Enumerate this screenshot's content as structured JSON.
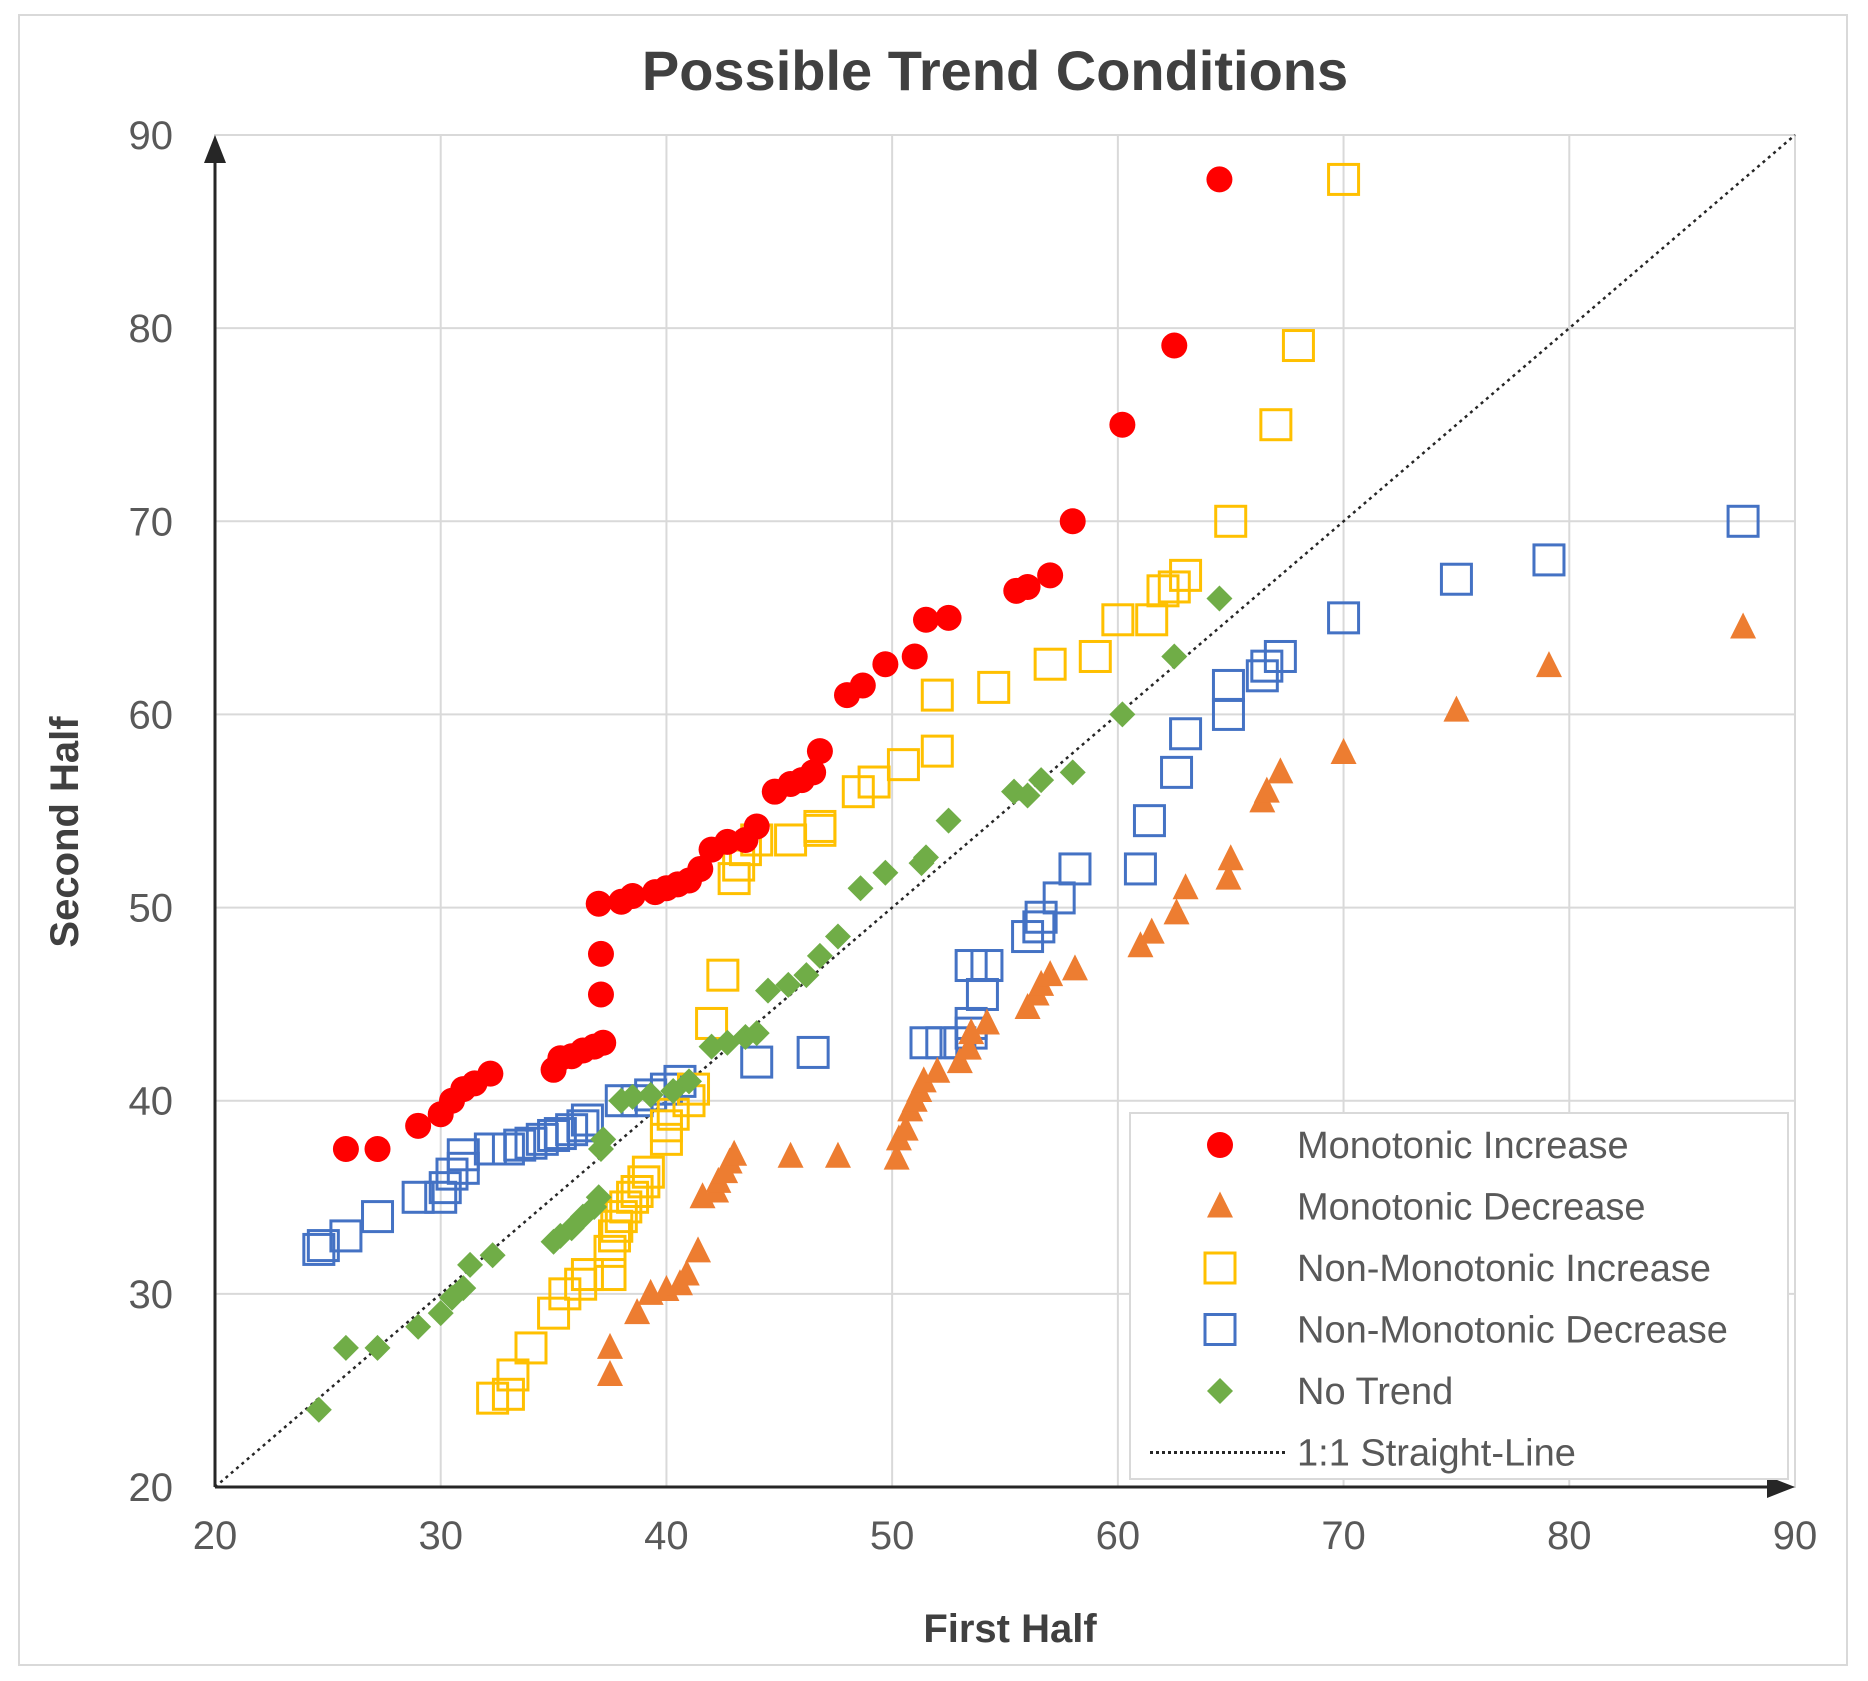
{
  "chart_data": {
    "type": "scatter",
    "title": "Possible Trend Conditions",
    "xlabel": "First Half",
    "ylabel": "Second Half",
    "xlim": [
      20,
      90
    ],
    "ylim": [
      20,
      90
    ],
    "xticks": [
      20,
      30,
      40,
      50,
      60,
      70,
      80,
      90
    ],
    "yticks": [
      20,
      30,
      40,
      50,
      60,
      70,
      80,
      90
    ],
    "grid": true,
    "legend_position": "bottom-right",
    "series": [
      {
        "name": "Monotonic Increase",
        "marker": "circle",
        "color": "#ff0000",
        "points": [
          [
            25.8,
            37.5
          ],
          [
            27.2,
            37.5
          ],
          [
            29,
            38.7
          ],
          [
            30,
            39.3
          ],
          [
            30.5,
            40
          ],
          [
            31,
            40.6
          ],
          [
            31.5,
            40.9
          ],
          [
            32.2,
            41.4
          ],
          [
            35,
            41.6
          ],
          [
            35.3,
            42.2
          ],
          [
            35.8,
            42.3
          ],
          [
            36.3,
            42.6
          ],
          [
            36.8,
            42.8
          ],
          [
            37.2,
            43
          ],
          [
            37.1,
            45.5
          ],
          [
            37.1,
            47.6
          ],
          [
            37,
            50.2
          ],
          [
            38,
            50.3
          ],
          [
            38.5,
            50.6
          ],
          [
            39.5,
            50.8
          ],
          [
            40,
            51
          ],
          [
            40.5,
            51.2
          ],
          [
            41,
            51.4
          ],
          [
            41.5,
            52
          ],
          [
            42,
            53
          ],
          [
            42.7,
            53.4
          ],
          [
            43.5,
            53.5
          ],
          [
            44,
            54.2
          ],
          [
            44.8,
            56
          ],
          [
            45.5,
            56.4
          ],
          [
            46,
            56.6
          ],
          [
            46.5,
            57
          ],
          [
            46.8,
            58.1
          ],
          [
            48,
            61
          ],
          [
            48.7,
            61.5
          ],
          [
            49.7,
            62.6
          ],
          [
            51,
            63
          ],
          [
            51.5,
            64.9
          ],
          [
            52.5,
            65
          ],
          [
            55.5,
            66.4
          ],
          [
            56,
            66.6
          ],
          [
            57,
            67.2
          ],
          [
            58,
            70
          ],
          [
            60.2,
            75
          ],
          [
            62.5,
            79.1
          ],
          [
            64.5,
            87.7
          ]
        ]
      },
      {
        "name": "Monotonic Decrease",
        "marker": "triangle",
        "color": "#ed7d31",
        "points": [
          [
            37.5,
            25.8
          ],
          [
            37.5,
            27.2
          ],
          [
            38.7,
            29
          ],
          [
            39.3,
            30
          ],
          [
            40,
            30.2
          ],
          [
            40.6,
            30.5
          ],
          [
            40.9,
            31
          ],
          [
            41.4,
            32.2
          ],
          [
            41.6,
            35
          ],
          [
            42.2,
            35.3
          ],
          [
            42.3,
            35.8
          ],
          [
            42.6,
            36.3
          ],
          [
            42.8,
            36.8
          ],
          [
            43,
            37.2
          ],
          [
            45.5,
            37.1
          ],
          [
            47.6,
            37.1
          ],
          [
            50.2,
            37
          ],
          [
            50.3,
            38
          ],
          [
            50.6,
            38.5
          ],
          [
            50.8,
            39.5
          ],
          [
            51,
            40
          ],
          [
            51.2,
            40.5
          ],
          [
            51.4,
            41
          ],
          [
            52,
            41.5
          ],
          [
            53,
            42
          ],
          [
            53.4,
            42.7
          ],
          [
            53.5,
            43.5
          ],
          [
            54.2,
            44
          ],
          [
            56,
            44.8
          ],
          [
            56.4,
            45.5
          ],
          [
            56.6,
            46
          ],
          [
            57,
            46.5
          ],
          [
            58.1,
            46.8
          ],
          [
            61,
            48
          ],
          [
            61.5,
            48.7
          ],
          [
            62.6,
            49.7
          ],
          [
            63,
            51
          ],
          [
            64.9,
            51.5
          ],
          [
            65,
            52.5
          ],
          [
            66.4,
            55.5
          ],
          [
            66.6,
            56
          ],
          [
            67.2,
            57
          ],
          [
            70,
            58
          ],
          [
            75,
            60.2
          ],
          [
            79.1,
            62.5
          ],
          [
            87.7,
            64.5
          ]
        ]
      },
      {
        "name": "Non-Monotonic Increase",
        "marker": "square-open",
        "color": "#ffc000",
        "points": [
          [
            32.3,
            24.6
          ],
          [
            33,
            24.8
          ],
          [
            33.2,
            25.8
          ],
          [
            34,
            27.2
          ],
          [
            35,
            29
          ],
          [
            35.5,
            30
          ],
          [
            36.2,
            30.5
          ],
          [
            36.5,
            31
          ],
          [
            37.5,
            31
          ],
          [
            37.5,
            32.2
          ],
          [
            37.7,
            33
          ],
          [
            37.8,
            33.5
          ],
          [
            38,
            34
          ],
          [
            38.2,
            34.5
          ],
          [
            38.5,
            35
          ],
          [
            38.7,
            35.3
          ],
          [
            39,
            35.8
          ],
          [
            39.2,
            36.3
          ],
          [
            40,
            38
          ],
          [
            40,
            38.7
          ],
          [
            40.3,
            39.3
          ],
          [
            41,
            40
          ],
          [
            41.2,
            40.6
          ],
          [
            42,
            44
          ],
          [
            42.5,
            46.5
          ],
          [
            43,
            51.5
          ],
          [
            43.2,
            52.2
          ],
          [
            43.5,
            53
          ],
          [
            44,
            53.5
          ],
          [
            45.5,
            53.5
          ],
          [
            46.8,
            54
          ],
          [
            46.8,
            54.2
          ],
          [
            48.5,
            56
          ],
          [
            49.2,
            56.5
          ],
          [
            50.5,
            57.4
          ],
          [
            52,
            58.1
          ],
          [
            52,
            61
          ],
          [
            54.5,
            61.4
          ],
          [
            57,
            62.6
          ],
          [
            59,
            63
          ],
          [
            60,
            64.9
          ],
          [
            61.5,
            64.9
          ],
          [
            62,
            66.4
          ],
          [
            62.5,
            66.6
          ],
          [
            63,
            67.2
          ],
          [
            65,
            70
          ],
          [
            67,
            75
          ],
          [
            68,
            79.1
          ],
          [
            70,
            87.7
          ]
        ]
      },
      {
        "name": "Non-Monotonic Decrease",
        "marker": "square-open",
        "color": "#4472c4",
        "points": [
          [
            24.6,
            32.3
          ],
          [
            24.8,
            32.5
          ],
          [
            25.8,
            33
          ],
          [
            27.2,
            34
          ],
          [
            29,
            35
          ],
          [
            30,
            35
          ],
          [
            30.2,
            35.5
          ],
          [
            30.5,
            36.2
          ],
          [
            31,
            36.5
          ],
          [
            31,
            37.2
          ],
          [
            32.2,
            37.5
          ],
          [
            33,
            37.5
          ],
          [
            33.5,
            37.7
          ],
          [
            34,
            37.8
          ],
          [
            34.5,
            38
          ],
          [
            35,
            38.2
          ],
          [
            35.3,
            38.3
          ],
          [
            35.8,
            38.5
          ],
          [
            36.3,
            38.7
          ],
          [
            36.5,
            39
          ],
          [
            38,
            40
          ],
          [
            38.7,
            40
          ],
          [
            39.3,
            40.3
          ],
          [
            40,
            40.6
          ],
          [
            40.6,
            41
          ],
          [
            44,
            42
          ],
          [
            46.5,
            42.5
          ],
          [
            51.5,
            43
          ],
          [
            52.2,
            43
          ],
          [
            53,
            43
          ],
          [
            53.5,
            43.5
          ],
          [
            53.5,
            44
          ],
          [
            54,
            45.5
          ],
          [
            53.5,
            47
          ],
          [
            54.2,
            47
          ],
          [
            56,
            48.5
          ],
          [
            56.5,
            49
          ],
          [
            56.6,
            49.5
          ],
          [
            57.4,
            50.5
          ],
          [
            58.1,
            52
          ],
          [
            61,
            52
          ],
          [
            61.4,
            54.5
          ],
          [
            62.6,
            57
          ],
          [
            63,
            59
          ],
          [
            64.9,
            60
          ],
          [
            64.9,
            61.5
          ],
          [
            66.4,
            62
          ],
          [
            66.6,
            62.5
          ],
          [
            67.2,
            63
          ],
          [
            70,
            65
          ],
          [
            75,
            67
          ],
          [
            79.1,
            68
          ],
          [
            87.7,
            70
          ]
        ]
      },
      {
        "name": "No Trend",
        "marker": "diamond",
        "color": "#70ad47",
        "points": [
          [
            24.6,
            24
          ],
          [
            25.8,
            27.2
          ],
          [
            27.2,
            27.2
          ],
          [
            29,
            28.3
          ],
          [
            30,
            29
          ],
          [
            30.5,
            29.8
          ],
          [
            31,
            30.3
          ],
          [
            31.3,
            31.5
          ],
          [
            32.3,
            32
          ],
          [
            35,
            32.7
          ],
          [
            35.3,
            33
          ],
          [
            35.8,
            33.4
          ],
          [
            36.3,
            34
          ],
          [
            36.8,
            34.5
          ],
          [
            37,
            35
          ],
          [
            37.1,
            37.5
          ],
          [
            37.2,
            38
          ],
          [
            38,
            40
          ],
          [
            38.5,
            40.2
          ],
          [
            39.3,
            40.3
          ],
          [
            40.3,
            40.5
          ],
          [
            41,
            41
          ],
          [
            42,
            42.8
          ],
          [
            42.7,
            43
          ],
          [
            43.5,
            43.3
          ],
          [
            44,
            43.5
          ],
          [
            44.5,
            45.7
          ],
          [
            45.4,
            46
          ],
          [
            46.2,
            46.5
          ],
          [
            46.8,
            47.5
          ],
          [
            47.6,
            48.5
          ],
          [
            48.6,
            51
          ],
          [
            49.7,
            51.8
          ],
          [
            51.3,
            52.3
          ],
          [
            51.5,
            52.6
          ],
          [
            52.5,
            54.5
          ],
          [
            55.4,
            56
          ],
          [
            56,
            55.8
          ],
          [
            56.6,
            56.6
          ],
          [
            58,
            57
          ],
          [
            60.2,
            60
          ],
          [
            62.5,
            63
          ],
          [
            64.5,
            66
          ]
        ]
      }
    ],
    "reference_line": {
      "name": "1:1 Straight-Line",
      "style": "dotted",
      "color": "#262626",
      "from": [
        20,
        20
      ],
      "to": [
        90,
        90
      ]
    }
  }
}
